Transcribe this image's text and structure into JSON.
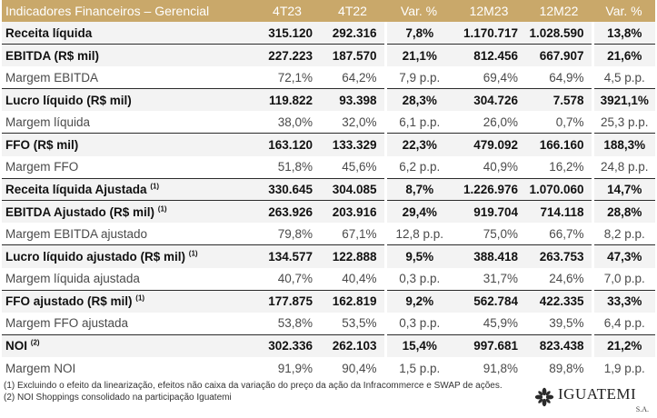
{
  "table": {
    "headers": [
      "Indicadores Financeiros – Gerencial",
      "4T23",
      "4T22",
      "Var. %",
      "12M23",
      "12M22",
      "Var. %"
    ],
    "rows": [
      {
        "type": "main",
        "label": "Receita líquida",
        "sup": "",
        "values": [
          "315.120",
          "292.316",
          "7,8%",
          "1.170.717",
          "1.028.590",
          "13,8%"
        ]
      },
      {
        "type": "main",
        "label": "EBITDA (R$ mil)",
        "sup": "",
        "values": [
          "227.223",
          "187.570",
          "21,1%",
          "812.456",
          "667.907",
          "21,6%"
        ]
      },
      {
        "type": "sub",
        "label": "Margem EBITDA",
        "sup": "",
        "values": [
          "72,1%",
          "64,2%",
          "7,9 p.p.",
          "69,4%",
          "64,9%",
          "4,5 p.p."
        ]
      },
      {
        "type": "main",
        "label": "Lucro líquido (R$ mil)",
        "sup": "",
        "values": [
          "119.822",
          "93.398",
          "28,3%",
          "304.726",
          "7.578",
          "3921,1%"
        ]
      },
      {
        "type": "sub",
        "label": "Margem líquida",
        "sup": "",
        "values": [
          "38,0%",
          "32,0%",
          "6,1 p.p.",
          "26,0%",
          "0,7%",
          "25,3 p.p."
        ]
      },
      {
        "type": "main",
        "label": "FFO (R$ mil)",
        "sup": "",
        "values": [
          "163.120",
          "133.329",
          "22,3%",
          "479.092",
          "166.160",
          "188,3%"
        ]
      },
      {
        "type": "sub",
        "label": "Margem FFO",
        "sup": "",
        "values": [
          "51,8%",
          "45,6%",
          "6,2 p.p.",
          "40,9%",
          "16,2%",
          "24,8 p.p."
        ]
      },
      {
        "type": "main",
        "label": "Receita líquida Ajustada",
        "sup": "(1)",
        "values": [
          "330.645",
          "304.085",
          "8,7%",
          "1.226.976",
          "1.070.060",
          "14,7%"
        ]
      },
      {
        "type": "main",
        "label": "EBITDA Ajustado (R$ mil)",
        "sup": "(1)",
        "values": [
          "263.926",
          "203.916",
          "29,4%",
          "919.704",
          "714.118",
          "28,8%"
        ]
      },
      {
        "type": "sub",
        "label": "Margem EBITDA ajustado",
        "sup": "",
        "values": [
          "79,8%",
          "67,1%",
          "12,8 p.p.",
          "75,0%",
          "66,7%",
          "8,2 p.p."
        ]
      },
      {
        "type": "main",
        "label": "Lucro líquido ajustado (R$ mil)",
        "sup": "(1)",
        "values": [
          "134.577",
          "122.888",
          "9,5%",
          "388.418",
          "263.753",
          "47,3%"
        ]
      },
      {
        "type": "sub",
        "label": "Margem líquida ajustada",
        "sup": "",
        "values": [
          "40,7%",
          "40,4%",
          "0,3 p.p.",
          "31,7%",
          "24,6%",
          "7,0 p.p."
        ]
      },
      {
        "type": "main",
        "label": "FFO ajustado (R$ mil)",
        "sup": "(1)",
        "values": [
          "177.875",
          "162.819",
          "9,2%",
          "562.784",
          "422.335",
          "33,3%"
        ]
      },
      {
        "type": "sub",
        "label": "Margem FFO ajustada",
        "sup": "",
        "values": [
          "53,8%",
          "53,5%",
          "0,3 p.p.",
          "45,9%",
          "39,5%",
          "6,4 p.p."
        ]
      },
      {
        "type": "main",
        "label": "NOI",
        "sup": "(2)",
        "values": [
          "302.336",
          "262.103",
          "15,4%",
          "997.681",
          "823.438",
          "21,2%"
        ]
      },
      {
        "type": "sub",
        "label": "Margem NOI",
        "sup": "",
        "values": [
          "91,9%",
          "90,4%",
          "1,5 p.p.",
          "91,8%",
          "89,8%",
          "1,9 p.p."
        ]
      }
    ]
  },
  "footnotes": [
    "(1) Excluindo o efeito da linearização, efeitos não caixa da variação do preço da ação da Infracommerce e SWAP de ações.",
    "(2) NOI Shoppings consolidado na participação Iguatemi"
  ],
  "logo": {
    "name": "IGUATEMI",
    "suffix": "S.A."
  },
  "colors": {
    "header_bg": "#c9a86a",
    "header_text": "#ffffff",
    "main_row_bg": "#f3f3f3",
    "separator": "#2b2b2b"
  }
}
